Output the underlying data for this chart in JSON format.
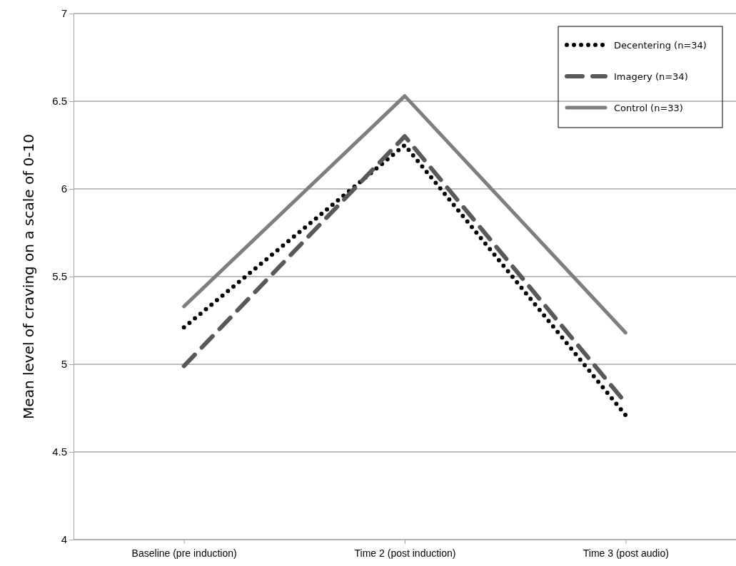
{
  "chart_data": {
    "type": "line",
    "ylabel": "Mean level of craving on a scale of 0-10",
    "categories": [
      "Baseline (pre induction)",
      "Time 2 (post induction)",
      "Time 3 (post audio)"
    ],
    "series": [
      {
        "name": "Decentering (n=34)",
        "color": "#000000",
        "line_style": "dotted",
        "values": [
          5.21,
          6.25,
          4.71
        ]
      },
      {
        "name": "Imagery (n=34)",
        "color": "#595959",
        "line_style": "dashed",
        "values": [
          4.99,
          6.3,
          4.78
        ]
      },
      {
        "name": "Control (n=33)",
        "color": "#7f7f7f",
        "line_style": "solid",
        "values": [
          5.33,
          6.53,
          5.18
        ]
      }
    ],
    "ylim": [
      4,
      7
    ],
    "yticks": [
      4,
      4.5,
      5,
      5.5,
      6,
      6.5,
      7
    ],
    "grid": "y",
    "legend": "top right",
    "marker": "none"
  }
}
